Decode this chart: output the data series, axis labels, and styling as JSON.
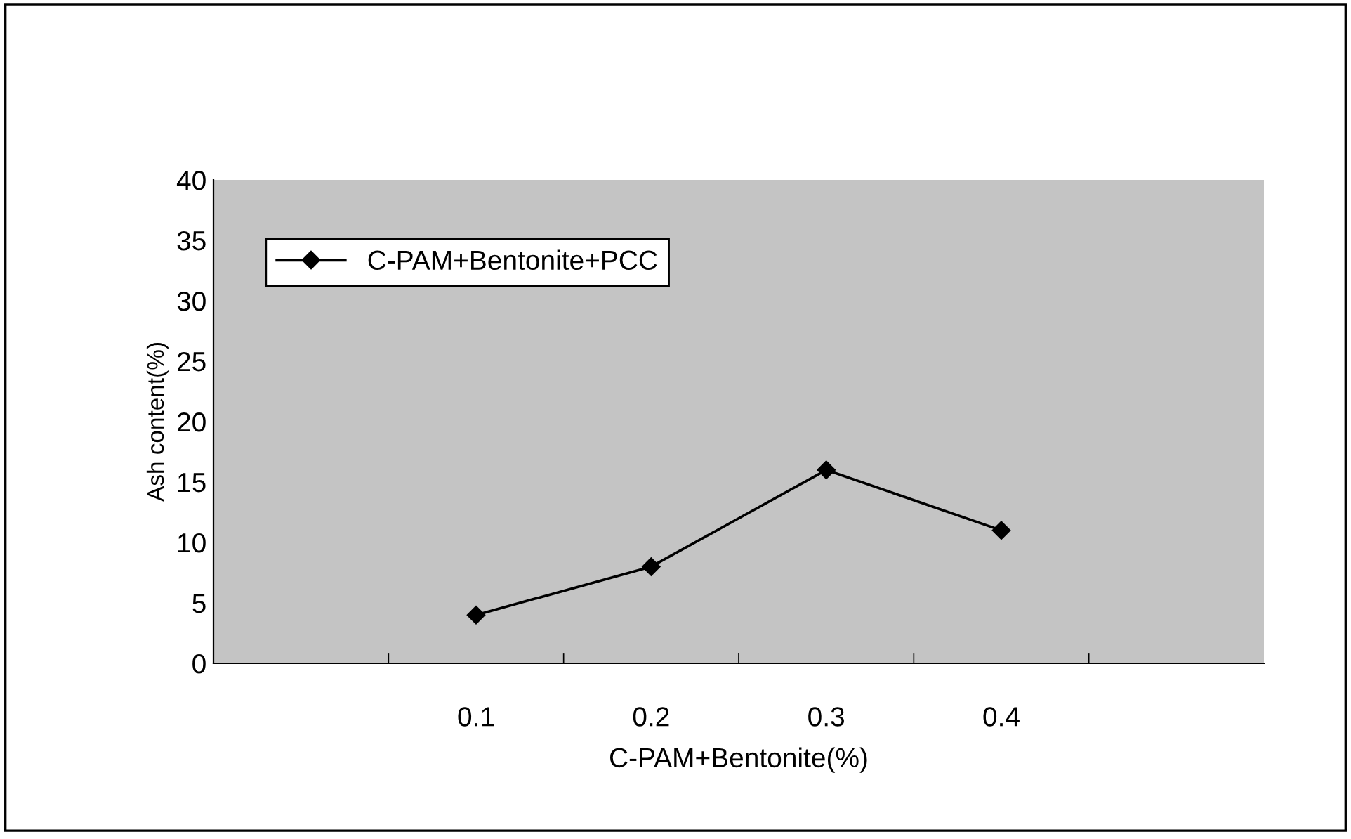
{
  "chart_data": {
    "type": "line",
    "xlabel": "C-PAM+Bentonite(%)",
    "ylabel": "Ash content(%)",
    "categories": [
      null,
      "0.1",
      "0.2",
      "0.3",
      "0.4",
      null
    ],
    "series": [
      {
        "name": "C-PAM+Bentonite+PCC",
        "color": "#000000",
        "values": [
          null,
          4,
          8,
          16,
          11,
          null
        ]
      }
    ],
    "ylim": [
      0,
      40
    ],
    "yticks": [
      0,
      5,
      10,
      15,
      20,
      25,
      30,
      35,
      40
    ],
    "grid": false,
    "legend": "top left",
    "marker": "diamond",
    "line_style": "solid"
  }
}
